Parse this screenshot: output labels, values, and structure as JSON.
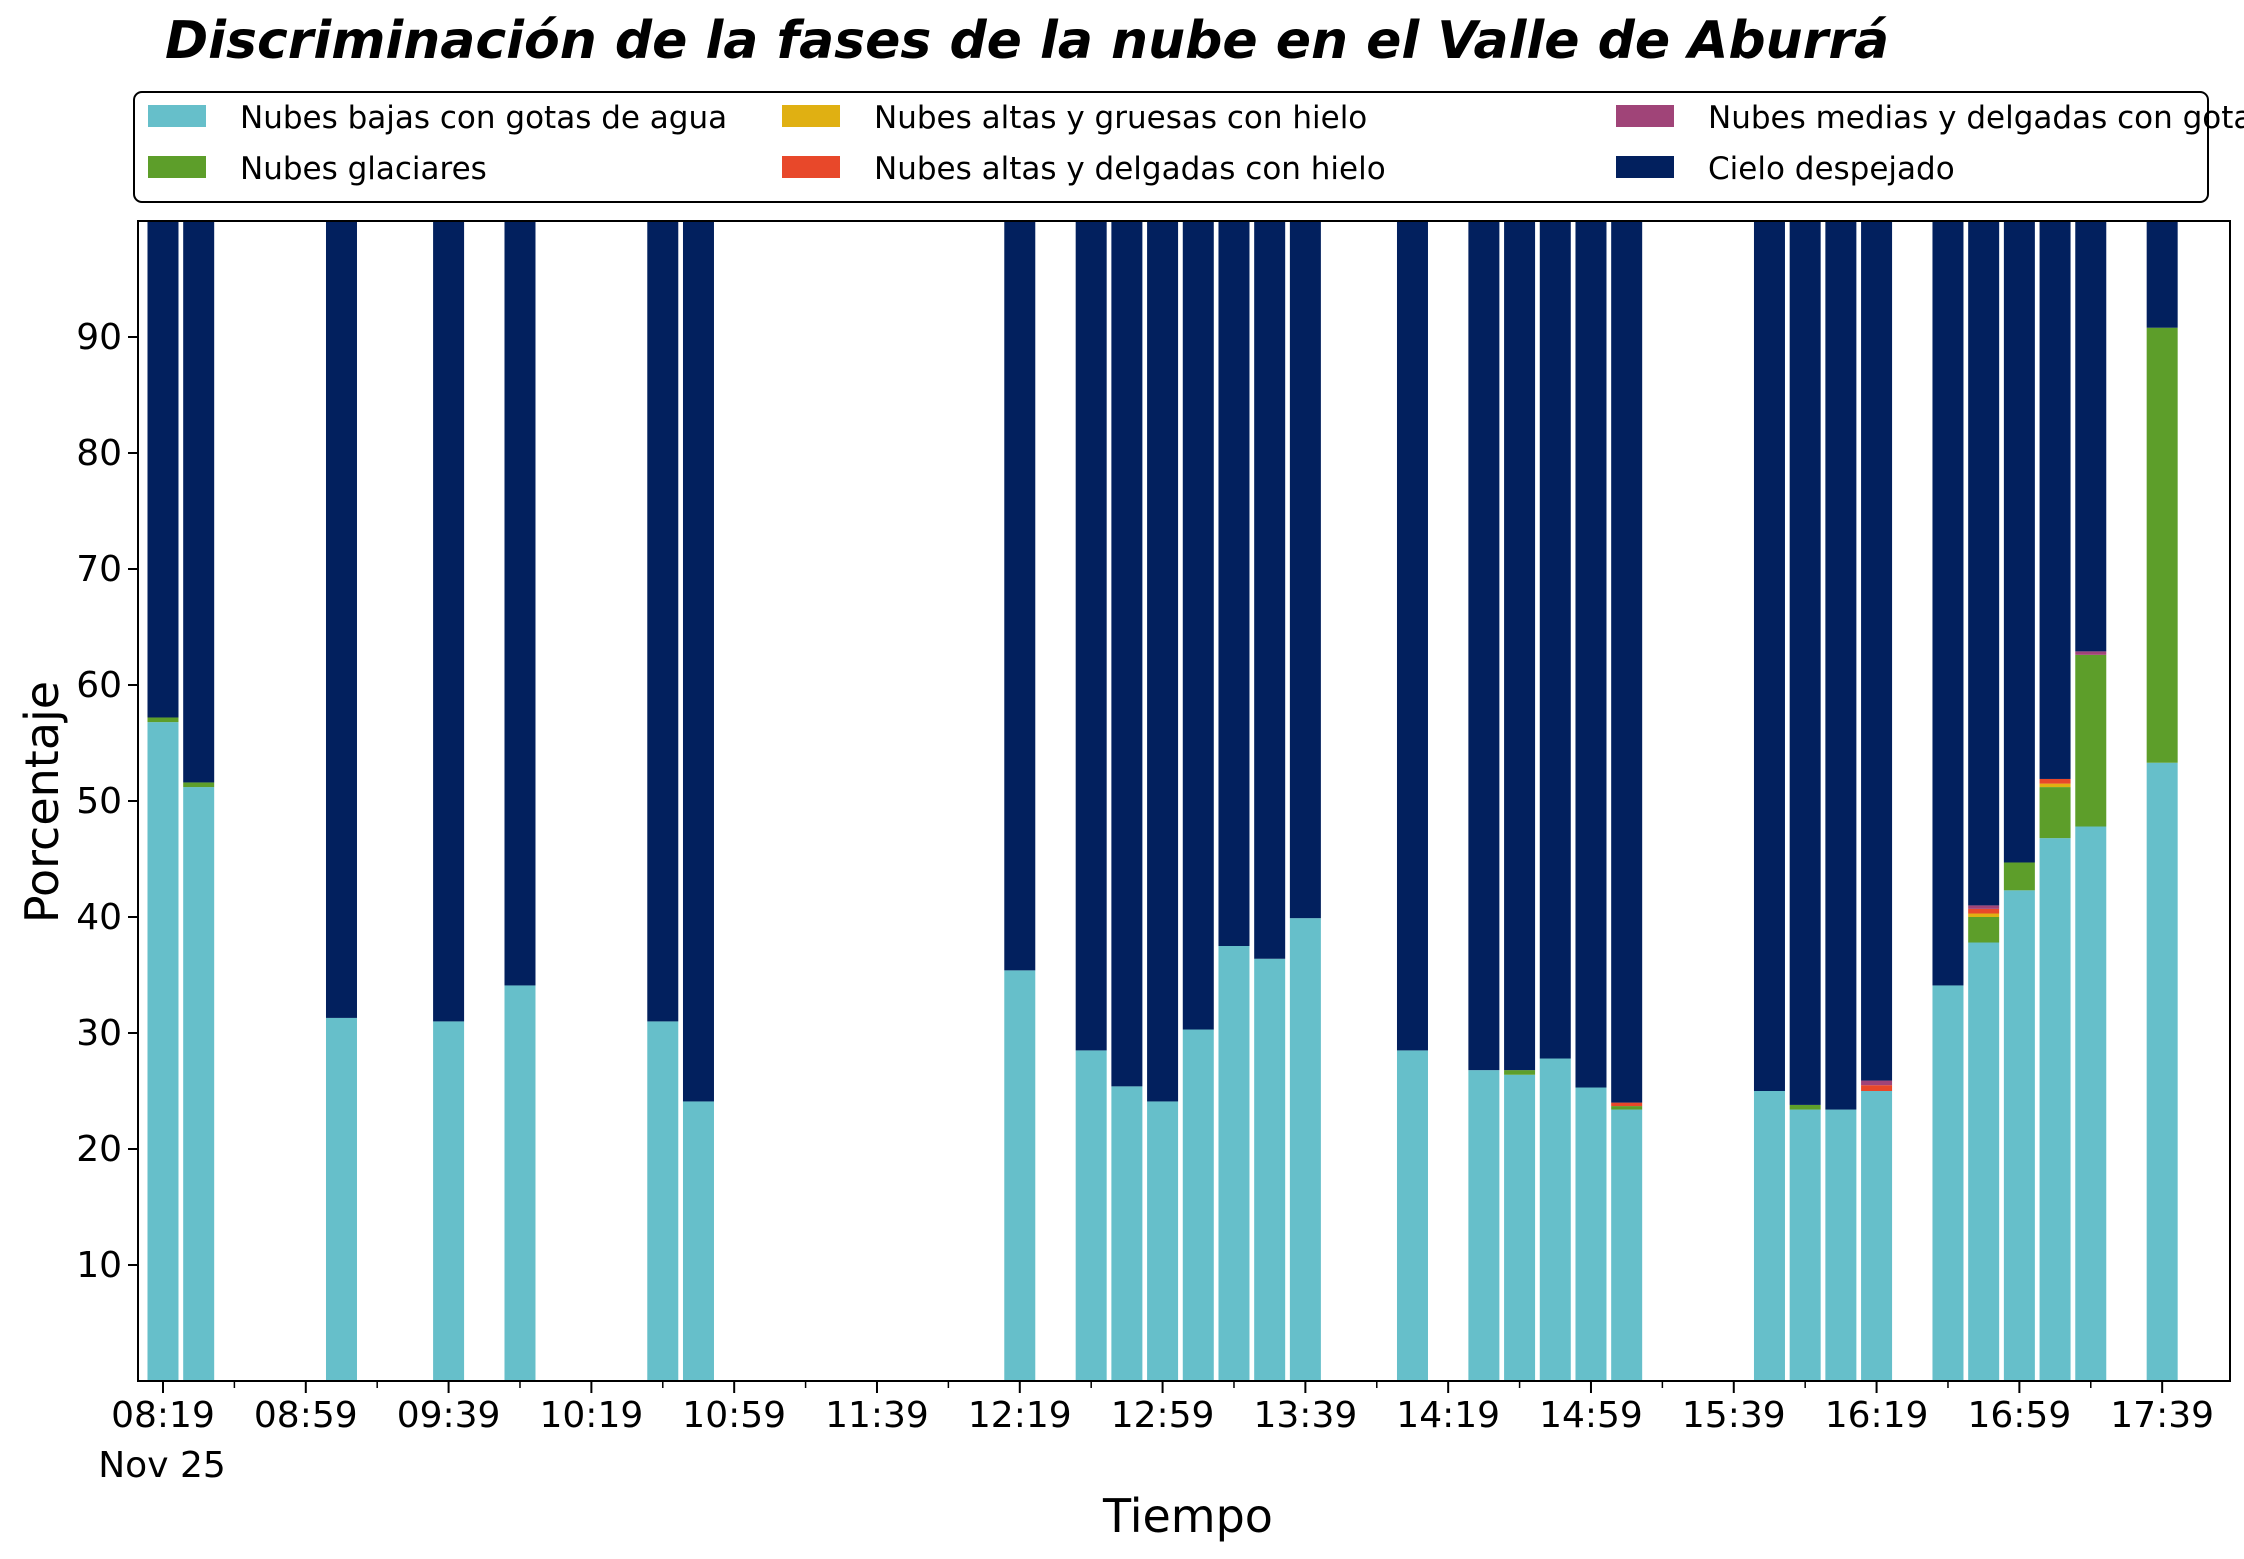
{
  "chart_data": {
    "type": "bar",
    "stacked": true,
    "title": "Discriminación de la fases de la nube en el Valle de Aburrá",
    "xlabel": "Tiempo",
    "ylabel": "Porcentaje",
    "ylim": [
      0,
      100
    ],
    "yticks": [
      10,
      20,
      30,
      40,
      50,
      60,
      70,
      80,
      90
    ],
    "x_axis_type": "time",
    "xlim": [
      "08:12",
      "17:58"
    ],
    "xticks": [
      "08:19",
      "08:59",
      "09:39",
      "10:19",
      "10:59",
      "11:39",
      "12:19",
      "12:59",
      "13:39",
      "14:19",
      "14:59",
      "15:39",
      "16:19",
      "16:59",
      "17:39"
    ],
    "date_label": "Nov 25",
    "grid": false,
    "legend_position": "top",
    "times": [
      "08:19",
      "08:29",
      "09:09",
      "09:39",
      "09:59",
      "10:39",
      "10:49",
      "12:19",
      "12:39",
      "12:49",
      "12:59",
      "13:09",
      "13:19",
      "13:29",
      "13:39",
      "14:09",
      "14:29",
      "14:39",
      "14:49",
      "14:59",
      "15:09",
      "15:49",
      "15:59",
      "16:09",
      "16:19",
      "16:39",
      "16:49",
      "16:59",
      "17:09",
      "17:19",
      "17:39"
    ],
    "series": [
      {
        "name": "Nubes bajas con gotas de agua",
        "color": "#66bfca",
        "values": [
          56.8,
          51.2,
          31.3,
          31.0,
          34.1,
          31.0,
          24.1,
          35.4,
          28.5,
          25.4,
          24.1,
          30.3,
          37.5,
          36.4,
          39.9,
          28.5,
          26.8,
          26.4,
          27.8,
          25.3,
          23.4,
          25.0,
          23.4,
          23.4,
          25.0,
          34.1,
          37.8,
          42.3,
          46.8,
          47.8,
          53.3
        ]
      },
      {
        "name": "Nubes glaciares",
        "color": "#5d9e2a",
        "values": [
          0.4,
          0.4,
          0,
          0,
          0,
          0,
          0,
          0,
          0,
          0,
          0,
          0,
          0,
          0,
          0,
          0,
          0,
          0.4,
          0,
          0,
          0.3,
          0,
          0.4,
          0,
          0,
          0,
          2.2,
          2.4,
          4.4,
          14.8,
          37.5
        ]
      },
      {
        "name": "Nubes altas y gruesas con hielo",
        "color": "#e0b012",
        "values": [
          0,
          0,
          0,
          0,
          0,
          0,
          0,
          0,
          0,
          0,
          0,
          0,
          0,
          0,
          0,
          0,
          0,
          0,
          0,
          0,
          0,
          0,
          0,
          0,
          0,
          0,
          0.3,
          0,
          0.3,
          0,
          0
        ]
      },
      {
        "name": "Nubes altas y delgadas con hielo",
        "color": "#e8482a",
        "values": [
          0,
          0,
          0,
          0,
          0,
          0,
          0,
          0,
          0,
          0,
          0,
          0,
          0,
          0,
          0,
          0,
          0,
          0,
          0,
          0,
          0.3,
          0,
          0,
          0,
          0.5,
          0,
          0.4,
          0,
          0.4,
          0,
          0
        ]
      },
      {
        "name": "Nubes medias y delgadas con gotas de agua",
        "color": "#a04478",
        "values": [
          0,
          0,
          0,
          0,
          0,
          0,
          0,
          0,
          0,
          0,
          0,
          0,
          0,
          0,
          0,
          0,
          0,
          0,
          0,
          0,
          0,
          0,
          0,
          0,
          0.4,
          0,
          0.3,
          0,
          0,
          0.3,
          0
        ]
      },
      {
        "name": "Cielo despejado",
        "color": "#02205e",
        "values": [
          42.8,
          48.4,
          68.7,
          69.0,
          65.9,
          69.0,
          75.9,
          64.6,
          71.5,
          74.6,
          75.9,
          69.7,
          62.5,
          63.6,
          60.1,
          71.5,
          73.2,
          73.2,
          72.2,
          74.7,
          76.0,
          75.0,
          76.2,
          76.6,
          74.1,
          65.9,
          59.0,
          55.3,
          48.1,
          37.1,
          9.2
        ]
      }
    ]
  }
}
